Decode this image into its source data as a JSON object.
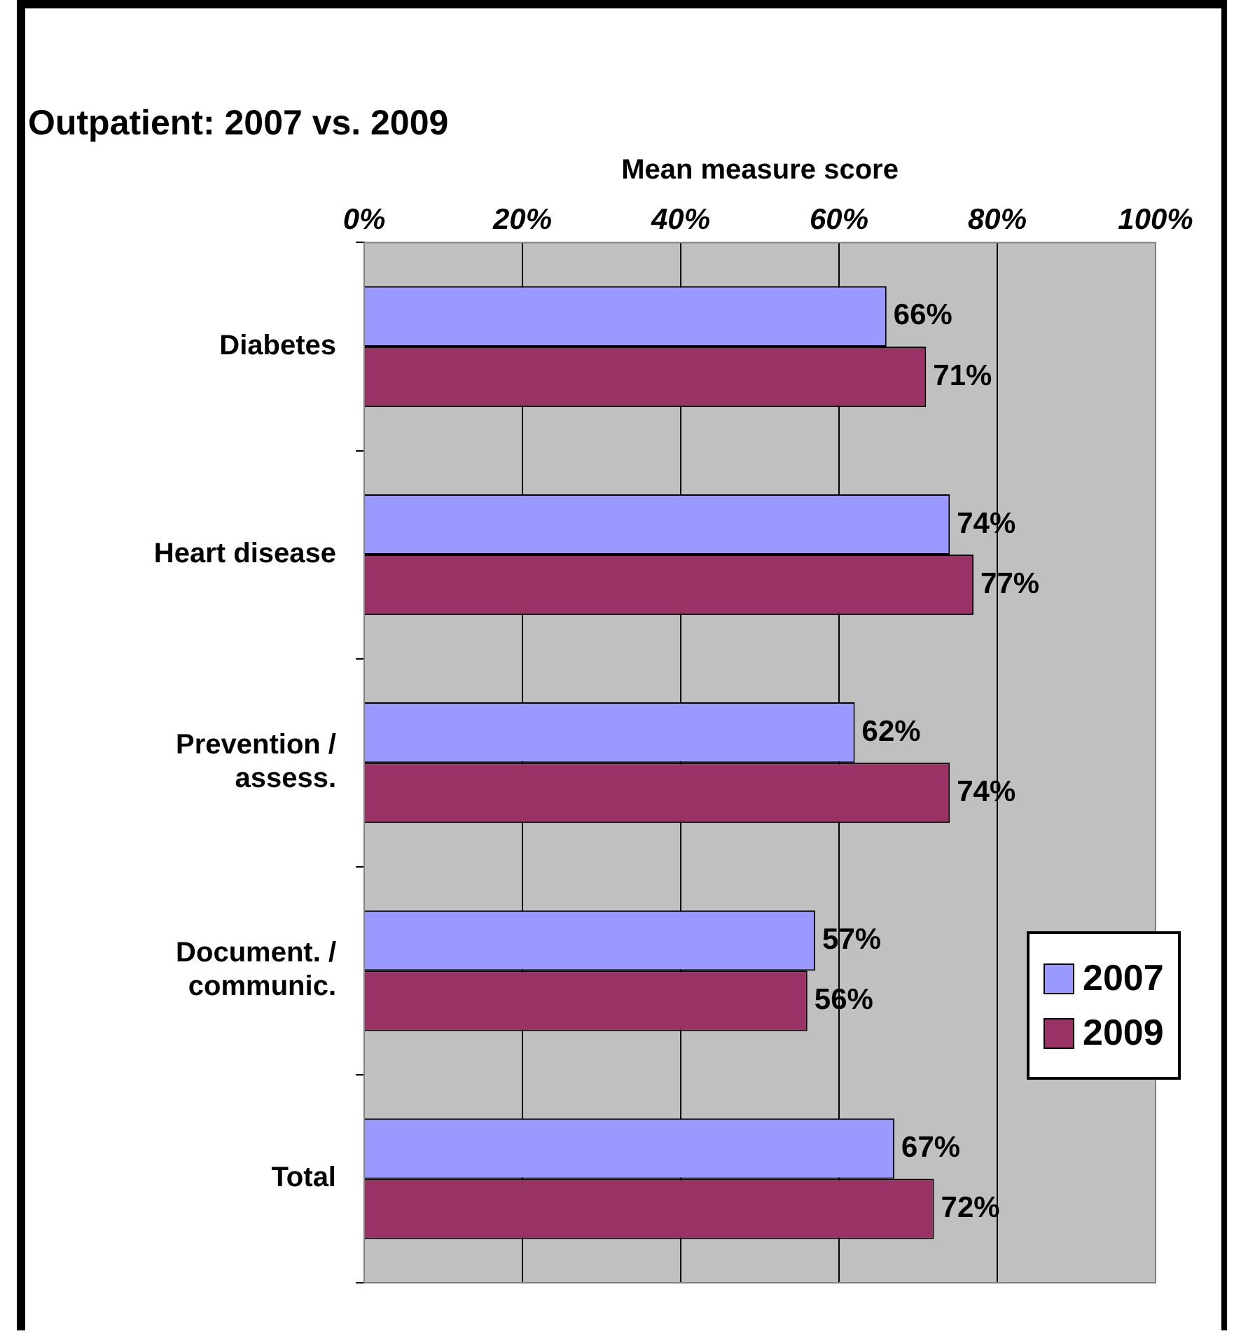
{
  "chart_data": {
    "type": "bar",
    "orientation": "horizontal",
    "title": "Outpatient: 2007 vs. 2009",
    "xlabel": "Mean measure score",
    "categories": [
      "Diabetes",
      "Heart disease",
      "Prevention / assess.",
      "Document. / communic.",
      "Total"
    ],
    "series": [
      {
        "name": "2007",
        "color": "#9999ff",
        "values": [
          66,
          74,
          62,
          57,
          67
        ],
        "value_labels": [
          "66%",
          "74%",
          "62%",
          "57%",
          "67%"
        ]
      },
      {
        "name": "2009",
        "color": "#993366",
        "values": [
          71,
          77,
          74,
          56,
          72
        ],
        "value_labels": [
          "71%",
          "77%",
          "74%",
          "56%",
          "72%"
        ]
      }
    ],
    "xlim": [
      0,
      100
    ],
    "xticks": [
      {
        "value": 0,
        "label": "0%"
      },
      {
        "value": 20,
        "label": "20%"
      },
      {
        "value": 40,
        "label": "40%"
      },
      {
        "value": 60,
        "label": "60%"
      },
      {
        "value": 80,
        "label": "80%"
      },
      {
        "value": 100,
        "label": "100%"
      }
    ],
    "grid": "x",
    "legend": "right"
  }
}
